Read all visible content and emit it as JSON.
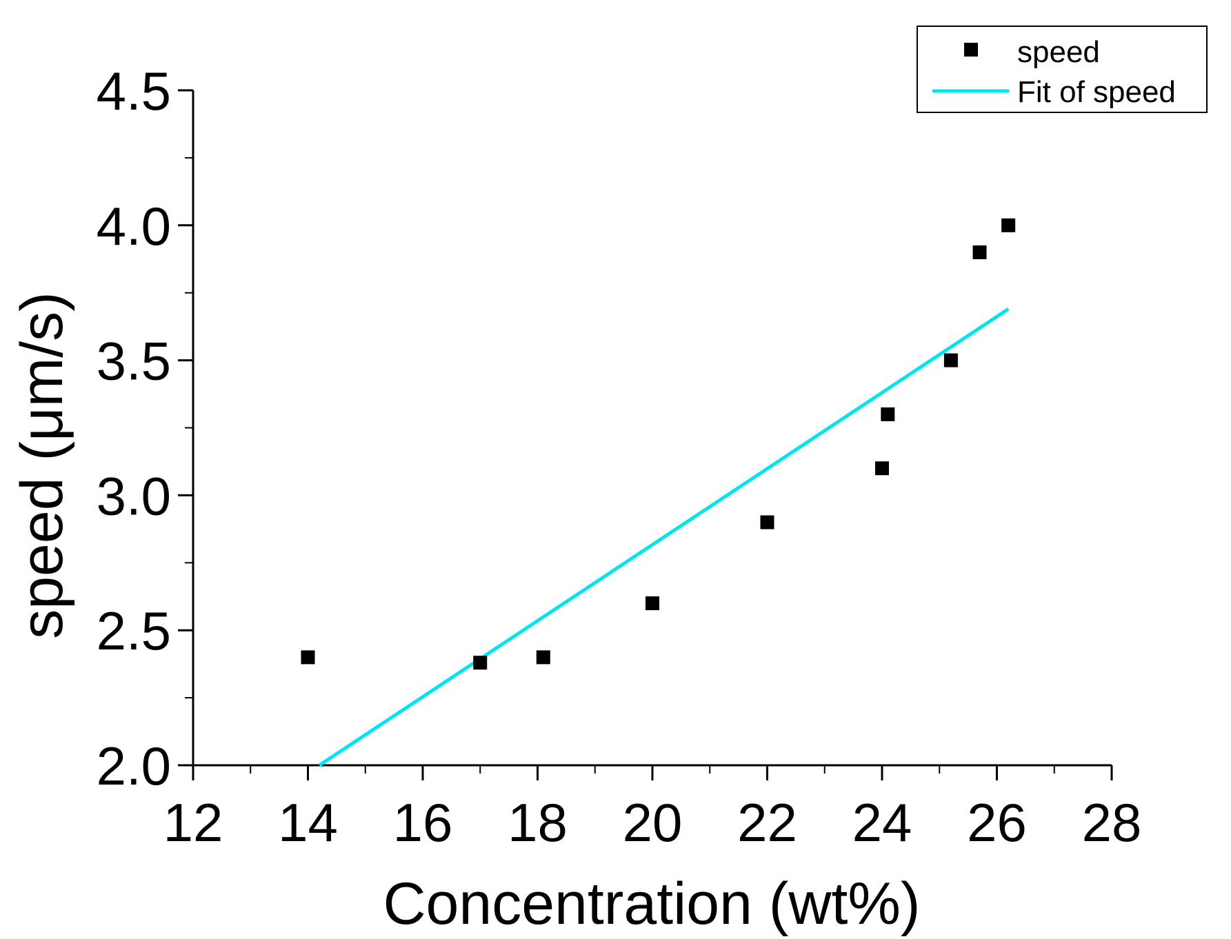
{
  "chart_data": {
    "type": "scatter",
    "title": "",
    "xlabel": "Concentration (wt%)",
    "ylabel": "speed (μm/s)",
    "xlim": [
      12,
      28
    ],
    "ylim": [
      2.0,
      4.5
    ],
    "xticks": [
      12,
      14,
      16,
      18,
      20,
      22,
      24,
      26,
      28
    ],
    "xtick_labels": [
      "12",
      "14",
      "16",
      "18",
      "20",
      "22",
      "24",
      "26",
      "28"
    ],
    "yticks": [
      2.0,
      2.5,
      3.0,
      3.5,
      4.0,
      4.5
    ],
    "ytick_labels": [
      "2.0",
      "2.5",
      "3.0",
      "3.5",
      "4.0",
      "4.5"
    ],
    "grid": false,
    "legend_position": "top-right",
    "series": [
      {
        "name": "speed",
        "kind": "scatter",
        "marker": "square",
        "color": "#000000",
        "x": [
          14.0,
          17.0,
          18.1,
          20.0,
          22.0,
          24.0,
          24.1,
          25.2,
          25.7,
          26.2
        ],
        "y": [
          2.4,
          2.38,
          2.4,
          2.6,
          2.9,
          3.1,
          3.3,
          3.5,
          3.9,
          4.0
        ]
      },
      {
        "name": "Fit of speed",
        "kind": "line",
        "color": "#00e5ee",
        "x": [
          14.2,
          26.2
        ],
        "y": [
          2.0,
          3.69
        ]
      }
    ]
  }
}
